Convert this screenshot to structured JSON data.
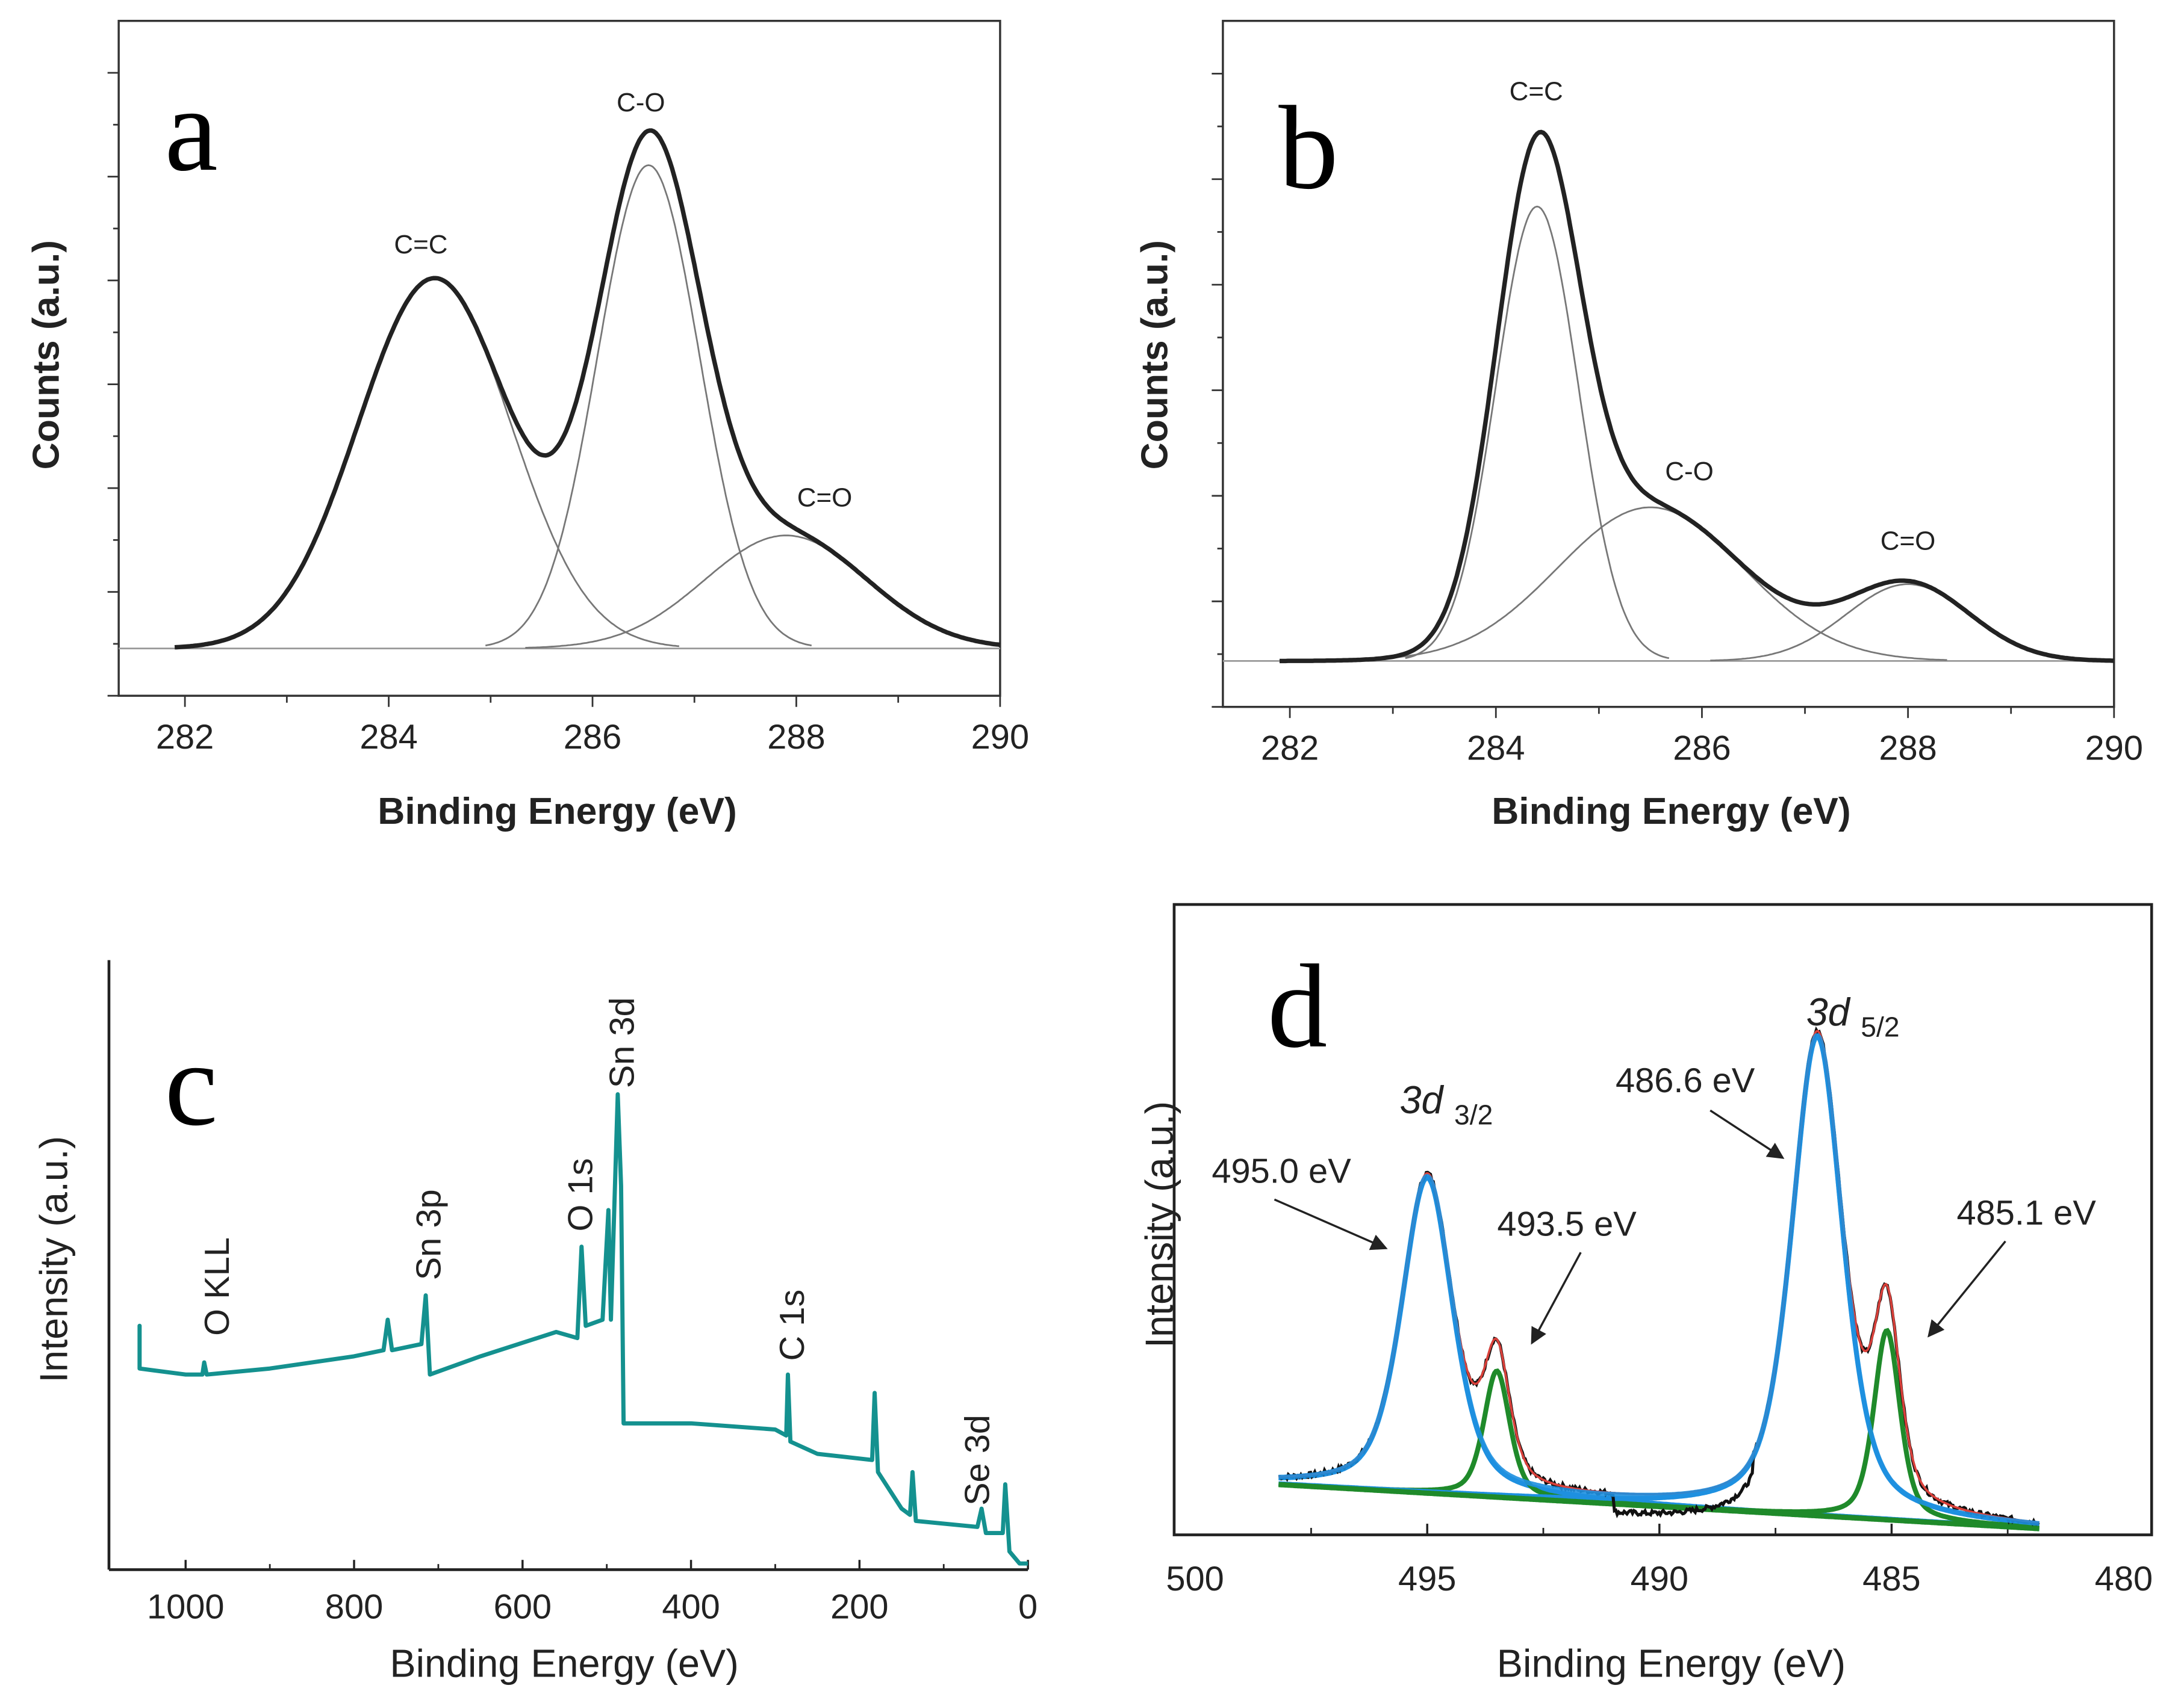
{
  "chart_data": [
    {
      "panel": "a",
      "type": "line",
      "xlabel": "Binding Energy (eV)",
      "ylabel": "Counts (a.u.)",
      "xlim": [
        281.35,
        290
      ],
      "xticks": [
        "282",
        "284",
        "286",
        "288",
        "290"
      ],
      "peaks": [
        {
          "name": "C=C",
          "center": 284.45,
          "amplitude": 0.59,
          "sigma": 0.75
        },
        {
          "name": "C-O",
          "center": 286.55,
          "amplitude": 0.77,
          "sigma": 0.5
        },
        {
          "name": "C=O",
          "center": 287.9,
          "amplitude": 0.18,
          "sigma": 0.8
        }
      ]
    },
    {
      "panel": "b",
      "type": "line",
      "xlabel": "Binding Energy (eV)",
      "ylabel": "Counts (a.u.)",
      "xlim": [
        281.35,
        290
      ],
      "xticks": [
        "282",
        "284",
        "286",
        "288",
        "290"
      ],
      "peaks": [
        {
          "name": "C=C",
          "center": 284.4,
          "amplitude": 0.71,
          "sigma": 0.4
        },
        {
          "name": "C-O",
          "center": 285.5,
          "amplitude": 0.24,
          "sigma": 0.9
        },
        {
          "name": "C=O",
          "center": 288.0,
          "amplitude": 0.12,
          "sigma": 0.6
        }
      ]
    },
    {
      "panel": "c",
      "type": "line",
      "xlabel": "Binding Energy (eV)",
      "ylabel": "Intensity (a.u.)",
      "xlim": [
        1091,
        0
      ],
      "xticks": [
        "1000",
        "800",
        "600",
        "400",
        "200",
        "0"
      ],
      "color": "#14918f",
      "x": [
        1100,
        1065,
        1060,
        1055,
        1000,
        980,
        978,
        975,
        900,
        800,
        765,
        760,
        755,
        720,
        715,
        710,
        650,
        560,
        535,
        530,
        525,
        505,
        498,
        495,
        487,
        483,
        480,
        400,
        300,
        287,
        285,
        282,
        250,
        185,
        182,
        178,
        150,
        140,
        137,
        133,
        60,
        55,
        50,
        30,
        27,
        22,
        10,
        0
      ],
      "y": [
        0.38,
        0.38,
        0.4,
        0.33,
        0.32,
        0.32,
        0.34,
        0.32,
        0.33,
        0.35,
        0.36,
        0.41,
        0.36,
        0.37,
        0.45,
        0.32,
        0.35,
        0.39,
        0.38,
        0.53,
        0.4,
        0.41,
        0.59,
        0.41,
        0.78,
        0.63,
        0.24,
        0.24,
        0.23,
        0.22,
        0.32,
        0.21,
        0.19,
        0.18,
        0.29,
        0.16,
        0.1,
        0.09,
        0.16,
        0.08,
        0.07,
        0.1,
        0.06,
        0.06,
        0.14,
        0.03,
        0.01,
        0.01
      ],
      "annotations": [
        "O KLL",
        "Sn 3p",
        "O 1s",
        "Sn 3d",
        "C 1s",
        "Se 3d"
      ]
    },
    {
      "panel": "d",
      "type": "line",
      "xlabel": "Binding Energy (eV)",
      "ylabel": "Intensity (a.u.)",
      "xlim": [
        500,
        480
      ],
      "xticks": [
        "500",
        "495",
        "490",
        "485",
        "480"
      ],
      "colors": {
        "data": "#111111",
        "envelope": "#d9403a",
        "main": "#1e90e0",
        "minor": "#1f8a2a"
      },
      "baseline": [
        0.08,
        0.01
      ],
      "peaks": [
        {
          "label": "495.0 eV",
          "center": 495.0,
          "amplitude": 0.5,
          "sigma": 0.55,
          "group": "main"
        },
        {
          "label": "493.5 eV",
          "center": 493.5,
          "amplitude": 0.2,
          "sigma": 0.28,
          "group": "minor"
        },
        {
          "label": "486.6 eV",
          "center": 486.6,
          "amplitude": 0.76,
          "sigma": 0.55,
          "group": "main"
        },
        {
          "label": "485.1 eV",
          "center": 485.1,
          "amplitude": 0.3,
          "sigma": 0.28,
          "group": "minor"
        }
      ],
      "annotations": {
        "d32": "3d",
        "d32_sub": "3/2",
        "d52": "3d",
        "d52_sub": "5/2"
      }
    }
  ],
  "panel_letters": [
    "a",
    "b",
    "c",
    "d"
  ]
}
